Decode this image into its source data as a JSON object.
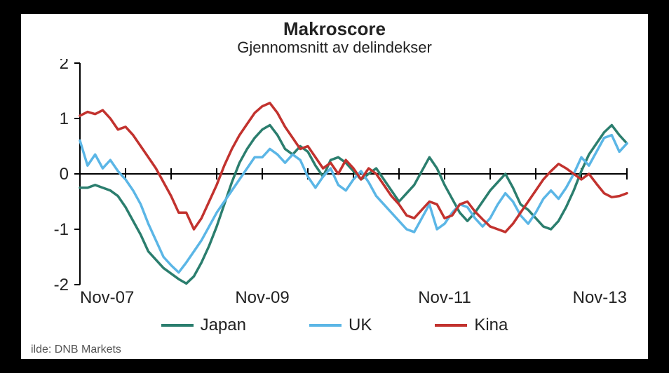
{
  "chart": {
    "type": "line",
    "title": "Makroscore",
    "subtitle": "Gjennomsnitt av delindekser",
    "title_fontsize": 26,
    "subtitle_fontsize": 22,
    "background_color": "#ffffff",
    "axis_color": "#000000",
    "axis_width": 2,
    "tick_len": 8,
    "line_width": 3.5,
    "ylim": [
      -2,
      2
    ],
    "yticks": [
      -2,
      -1,
      0,
      1,
      2
    ],
    "ytick_labels": [
      "-2",
      "-1",
      "0",
      "1",
      "2"
    ],
    "x_count": 73,
    "x_major_ticks": [
      0,
      24,
      48,
      72
    ],
    "x_major_labels": [
      "Nov-07",
      "Nov-09",
      "Nov-11",
      "Nov-13"
    ],
    "x_minor_ticks": [
      6,
      12,
      18,
      30,
      36,
      42,
      54,
      60,
      66
    ],
    "label_fontsize": 24,
    "label_color": "#222222",
    "legend": {
      "items": [
        {
          "label": "Japan",
          "color": "#2b7e6e"
        },
        {
          "label": "UK",
          "color": "#5bb6e6"
        },
        {
          "label": "Kina",
          "color": "#c2322e"
        }
      ],
      "fontsize": 24
    },
    "source": "ilde: DNB Markets",
    "series": {
      "Japan": {
        "color": "#2b7e6e",
        "values": [
          -0.25,
          -0.25,
          -0.2,
          -0.25,
          -0.3,
          -0.4,
          -0.6,
          -0.85,
          -1.1,
          -1.4,
          -1.55,
          -1.7,
          -1.8,
          -1.9,
          -1.98,
          -1.85,
          -1.6,
          -1.3,
          -0.95,
          -0.55,
          -0.15,
          0.2,
          0.45,
          0.65,
          0.8,
          0.88,
          0.7,
          0.45,
          0.35,
          0.5,
          0.4,
          0.15,
          -0.05,
          0.25,
          0.3,
          0.2,
          0.05,
          -0.1,
          0.0,
          0.1,
          -0.1,
          -0.3,
          -0.5,
          -0.35,
          -0.2,
          0.05,
          0.3,
          0.1,
          -0.2,
          -0.45,
          -0.7,
          -0.85,
          -0.7,
          -0.5,
          -0.3,
          -0.15,
          0.0,
          -0.25,
          -0.55,
          -0.65,
          -0.8,
          -0.95,
          -1.0,
          -0.85,
          -0.6,
          -0.3,
          0.05,
          0.35,
          0.55,
          0.75,
          0.88,
          0.7,
          0.55
        ]
      },
      "UK": {
        "color": "#5bb6e6",
        "values": [
          0.6,
          0.15,
          0.35,
          0.1,
          0.25,
          0.05,
          -0.1,
          -0.3,
          -0.55,
          -0.9,
          -1.2,
          -1.5,
          -1.65,
          -1.78,
          -1.6,
          -1.4,
          -1.2,
          -0.95,
          -0.7,
          -0.5,
          -0.3,
          -0.1,
          0.1,
          0.3,
          0.3,
          0.45,
          0.35,
          0.2,
          0.35,
          0.25,
          -0.05,
          -0.25,
          -0.05,
          0.1,
          -0.2,
          -0.3,
          -0.1,
          0.05,
          -0.15,
          -0.4,
          -0.55,
          -0.7,
          -0.85,
          -1.0,
          -1.05,
          -0.8,
          -0.55,
          -1.0,
          -0.9,
          -0.7,
          -0.55,
          -0.6,
          -0.8,
          -0.95,
          -0.8,
          -0.55,
          -0.35,
          -0.5,
          -0.75,
          -0.9,
          -0.7,
          -0.45,
          -0.3,
          -0.45,
          -0.25,
          0.0,
          0.3,
          0.15,
          0.4,
          0.65,
          0.7,
          0.4,
          0.55
        ]
      },
      "Kina": {
        "color": "#c2322e",
        "values": [
          1.05,
          1.12,
          1.08,
          1.15,
          1.0,
          0.8,
          0.85,
          0.7,
          0.5,
          0.3,
          0.1,
          -0.15,
          -0.4,
          -0.7,
          -0.7,
          -1.0,
          -0.8,
          -0.5,
          -0.2,
          0.15,
          0.45,
          0.7,
          0.9,
          1.1,
          1.22,
          1.28,
          1.1,
          0.85,
          0.65,
          0.45,
          0.5,
          0.3,
          0.1,
          0.2,
          0.0,
          0.25,
          0.1,
          -0.1,
          0.1,
          0.0,
          -0.2,
          -0.4,
          -0.55,
          -0.75,
          -0.8,
          -0.65,
          -0.5,
          -0.55,
          -0.8,
          -0.75,
          -0.55,
          -0.5,
          -0.68,
          -0.82,
          -0.95,
          -1.0,
          -1.05,
          -0.9,
          -0.7,
          -0.5,
          -0.3,
          -0.1,
          0.05,
          0.18,
          0.1,
          0.0,
          -0.1,
          0.0,
          -0.18,
          -0.35,
          -0.42,
          -0.4,
          -0.35
        ]
      }
    }
  }
}
